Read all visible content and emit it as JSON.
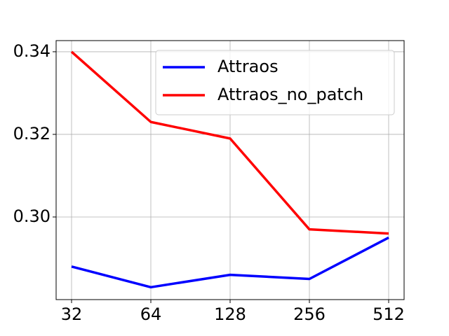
{
  "chart_data": {
    "type": "line",
    "categories": [
      "32",
      "64",
      "128",
      "256",
      "512"
    ],
    "series": [
      {
        "name": "Attraos",
        "color": "#0000ff",
        "values": [
          0.288,
          0.283,
          0.286,
          0.285,
          0.295
        ]
      },
      {
        "name": "Attraos_no_patch",
        "color": "#ff0000",
        "values": [
          0.34,
          0.323,
          0.319,
          0.297,
          0.296
        ]
      }
    ],
    "ylim": [
      0.28,
      0.3427
    ],
    "yticks": [
      {
        "value": 0.3,
        "label": "0.30"
      },
      0.32,
      0.34
    ],
    "grid": true,
    "legend": "upper right"
  }
}
